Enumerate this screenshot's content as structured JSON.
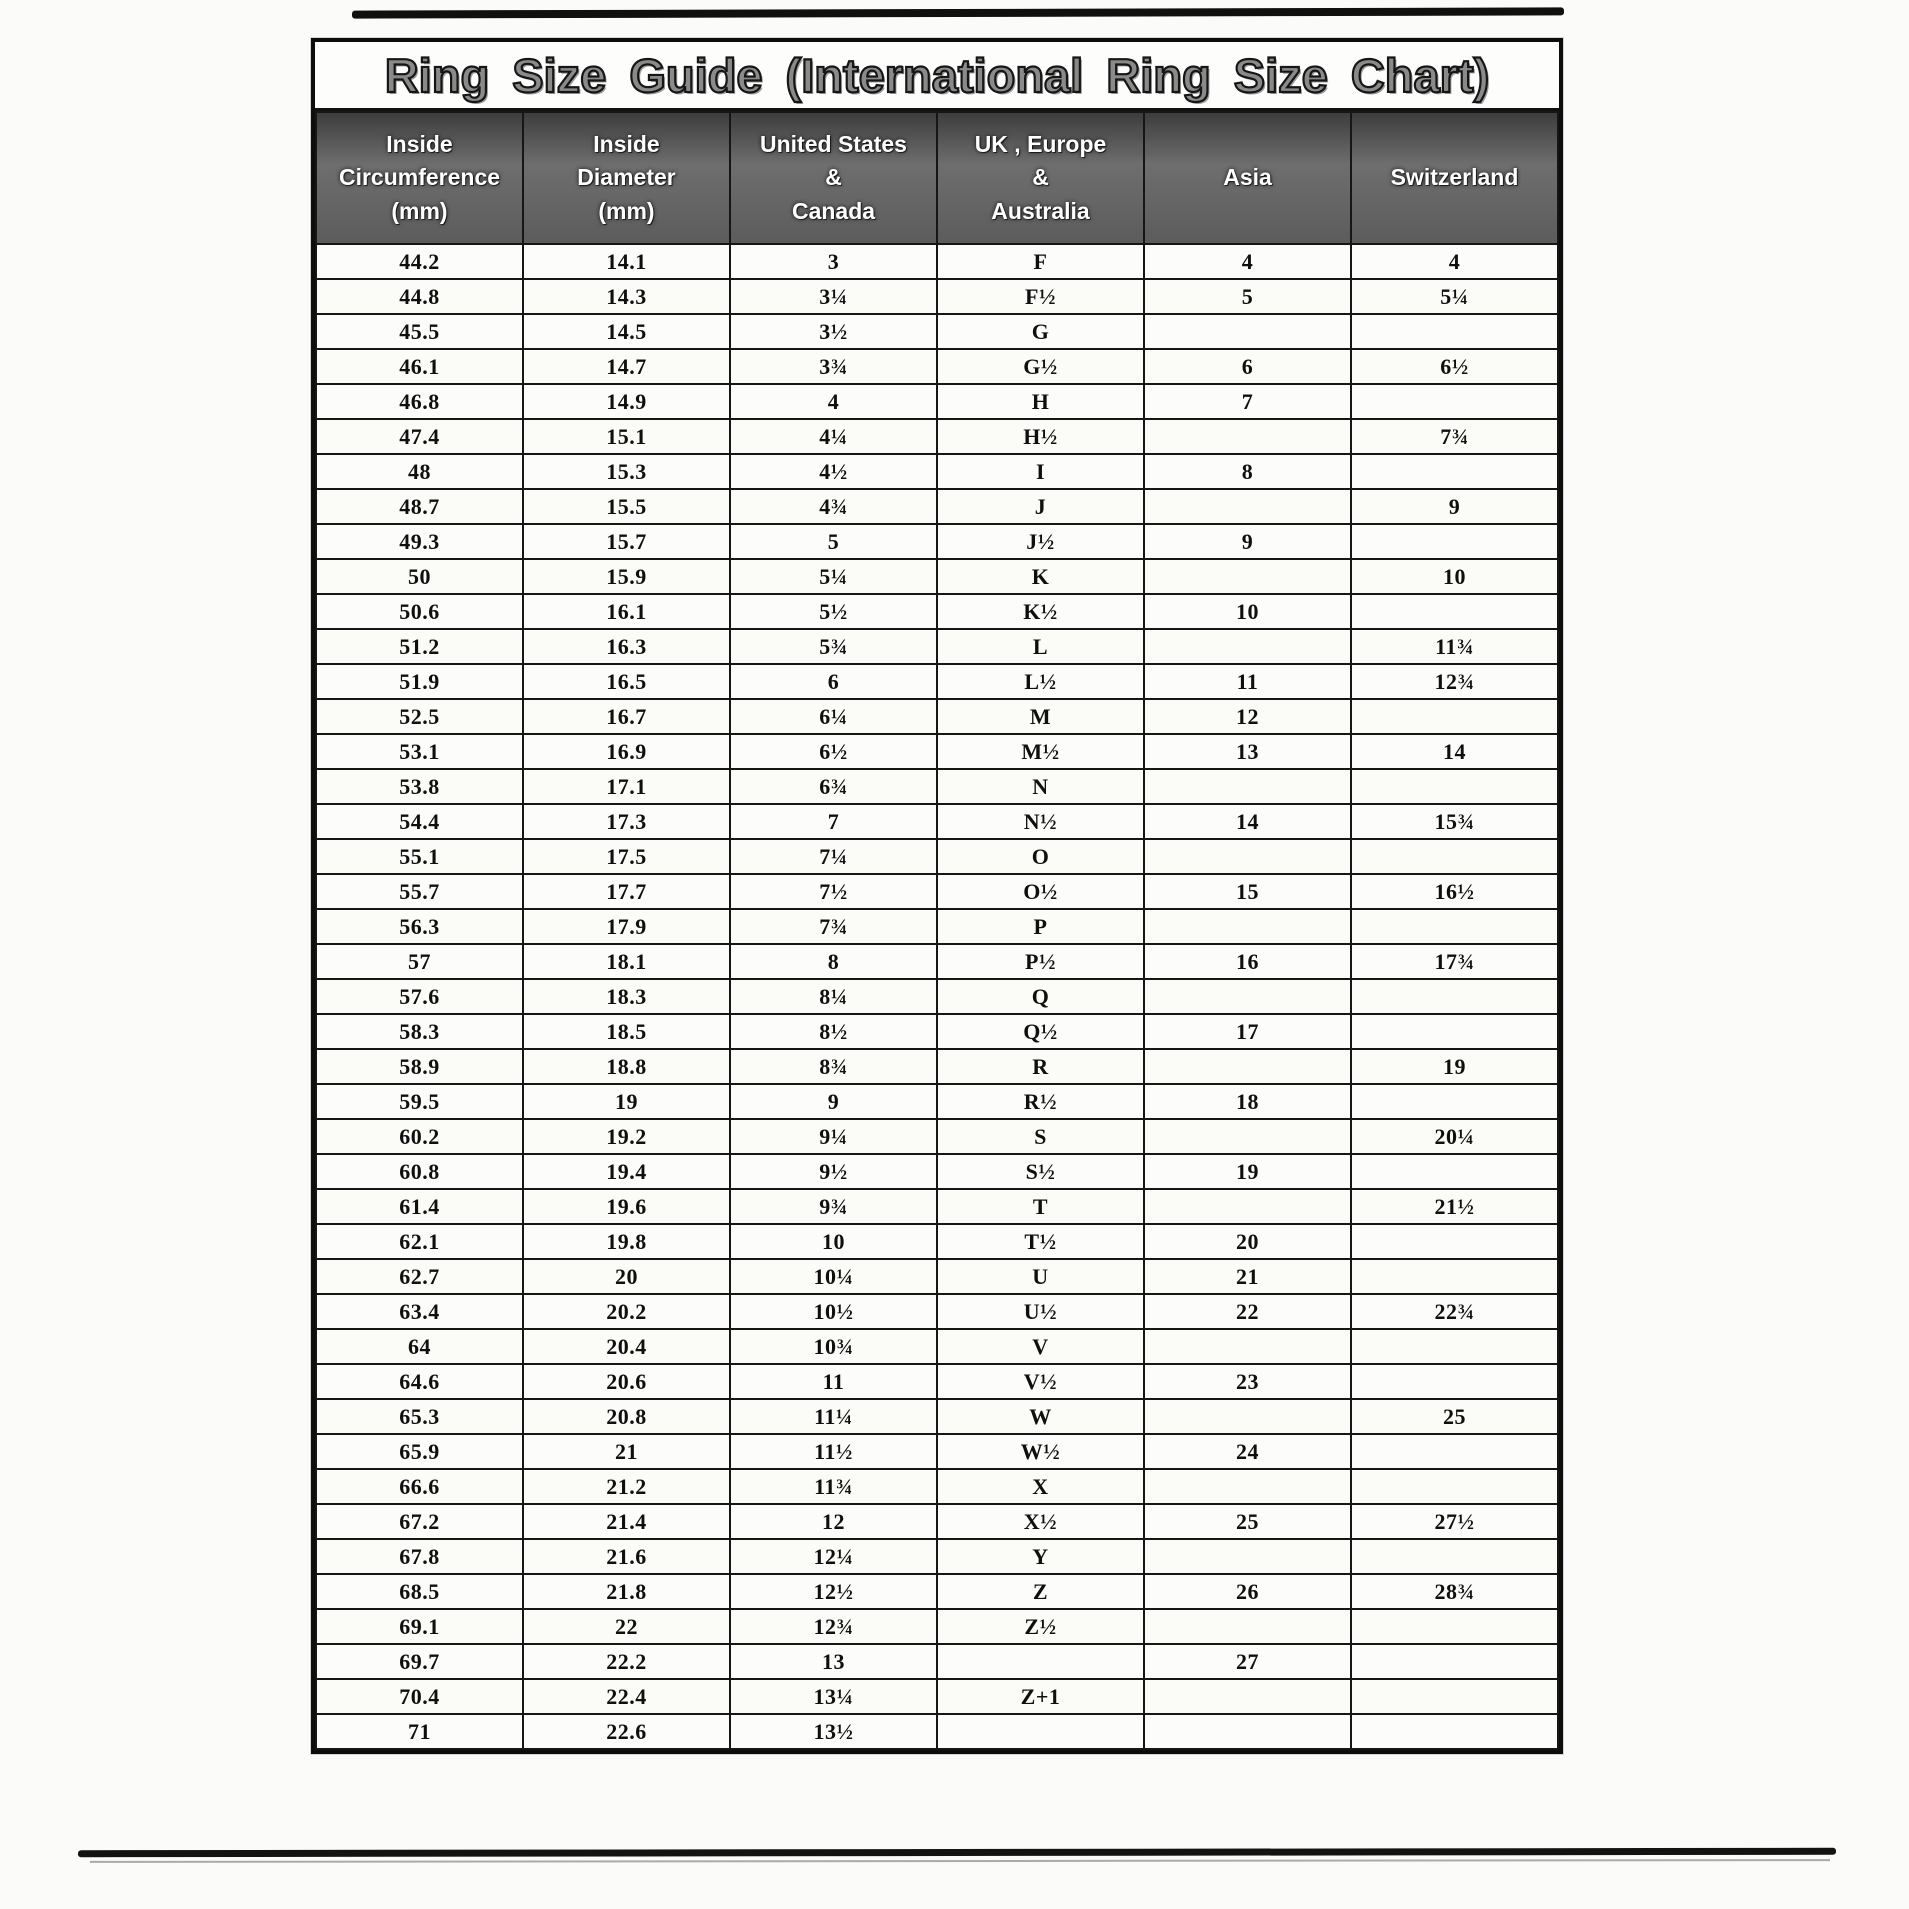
{
  "title": "Ring Size Guide (International Ring Size Chart)",
  "colors": {
    "paper": "#fbfbf9",
    "ink": "#111111",
    "table_border": "#161616",
    "header_bg": "#5c5c5c",
    "header_text": "#ffffff",
    "title_fill": "#8a8a8a"
  },
  "table": {
    "columns": [
      {
        "id": "inside-circumference",
        "label_lines": [
          "Inside",
          "Circumference",
          "(mm)"
        ]
      },
      {
        "id": "inside-diameter",
        "label_lines": [
          "Inside",
          "Diameter",
          "(mm)"
        ]
      },
      {
        "id": "us-canada",
        "label_lines": [
          "United States",
          "&",
          "Canada"
        ]
      },
      {
        "id": "uk-europe-australia",
        "label_lines": [
          "UK , Europe",
          "&",
          "Australia"
        ]
      },
      {
        "id": "asia",
        "label_lines": [
          "Asia"
        ]
      },
      {
        "id": "switzerland",
        "label_lines": [
          "Switzerland"
        ]
      }
    ],
    "rows": [
      [
        "44.2",
        "14.1",
        "3",
        "F",
        "4",
        "4"
      ],
      [
        "44.8",
        "14.3",
        "3¼",
        "F½",
        "5",
        "5¼"
      ],
      [
        "45.5",
        "14.5",
        "3½",
        "G",
        "",
        ""
      ],
      [
        "46.1",
        "14.7",
        "3¾",
        "G½",
        "6",
        "6½"
      ],
      [
        "46.8",
        "14.9",
        "4",
        "H",
        "7",
        ""
      ],
      [
        "47.4",
        "15.1",
        "4¼",
        "H½",
        "",
        "7¾"
      ],
      [
        "48",
        "15.3",
        "4½",
        "I",
        "8",
        ""
      ],
      [
        "48.7",
        "15.5",
        "4¾",
        "J",
        "",
        "9"
      ],
      [
        "49.3",
        "15.7",
        "5",
        "J½",
        "9",
        ""
      ],
      [
        "50",
        "15.9",
        "5¼",
        "K",
        "",
        "10"
      ],
      [
        "50.6",
        "16.1",
        "5½",
        "K½",
        "10",
        ""
      ],
      [
        "51.2",
        "16.3",
        "5¾",
        "L",
        "",
        "11¾"
      ],
      [
        "51.9",
        "16.5",
        "6",
        "L½",
        "11",
        "12¾"
      ],
      [
        "52.5",
        "16.7",
        "6¼",
        "M",
        "12",
        ""
      ],
      [
        "53.1",
        "16.9",
        "6½",
        "M½",
        "13",
        "14"
      ],
      [
        "53.8",
        "17.1",
        "6¾",
        "N",
        "",
        ""
      ],
      [
        "54.4",
        "17.3",
        "7",
        "N½",
        "14",
        "15¾"
      ],
      [
        "55.1",
        "17.5",
        "7¼",
        "O",
        "",
        ""
      ],
      [
        "55.7",
        "17.7",
        "7½",
        "O½",
        "15",
        "16½"
      ],
      [
        "56.3",
        "17.9",
        "7¾",
        "P",
        "",
        ""
      ],
      [
        "57",
        "18.1",
        "8",
        "P½",
        "16",
        "17¾"
      ],
      [
        "57.6",
        "18.3",
        "8¼",
        "Q",
        "",
        ""
      ],
      [
        "58.3",
        "18.5",
        "8½",
        "Q½",
        "17",
        ""
      ],
      [
        "58.9",
        "18.8",
        "8¾",
        "R",
        "",
        "19"
      ],
      [
        "59.5",
        "19",
        "9",
        "R½",
        "18",
        ""
      ],
      [
        "60.2",
        "19.2",
        "9¼",
        "S",
        "",
        "20¼"
      ],
      [
        "60.8",
        "19.4",
        "9½",
        "S½",
        "19",
        ""
      ],
      [
        "61.4",
        "19.6",
        "9¾",
        "T",
        "",
        "21½"
      ],
      [
        "62.1",
        "19.8",
        "10",
        "T½",
        "20",
        ""
      ],
      [
        "62.7",
        "20",
        "10¼",
        "U",
        "21",
        ""
      ],
      [
        "63.4",
        "20.2",
        "10½",
        "U½",
        "22",
        "22¾"
      ],
      [
        "64",
        "20.4",
        "10¾",
        "V",
        "",
        ""
      ],
      [
        "64.6",
        "20.6",
        "11",
        "V½",
        "23",
        ""
      ],
      [
        "65.3",
        "20.8",
        "11¼",
        "W",
        "",
        "25"
      ],
      [
        "65.9",
        "21",
        "11½",
        "W½",
        "24",
        ""
      ],
      [
        "66.6",
        "21.2",
        "11¾",
        "X",
        "",
        ""
      ],
      [
        "67.2",
        "21.4",
        "12",
        "X½",
        "25",
        "27½"
      ],
      [
        "67.8",
        "21.6",
        "12¼",
        "Y",
        "",
        ""
      ],
      [
        "68.5",
        "21.8",
        "12½",
        "Z",
        "26",
        "28¾"
      ],
      [
        "69.1",
        "22",
        "12¾",
        "Z½",
        "",
        ""
      ],
      [
        "69.7",
        "22.2",
        "13",
        "",
        "27",
        ""
      ],
      [
        "70.4",
        "22.4",
        "13¼",
        "Z+1",
        "",
        ""
      ],
      [
        "71",
        "22.6",
        "13½",
        "",
        "",
        ""
      ]
    ]
  }
}
